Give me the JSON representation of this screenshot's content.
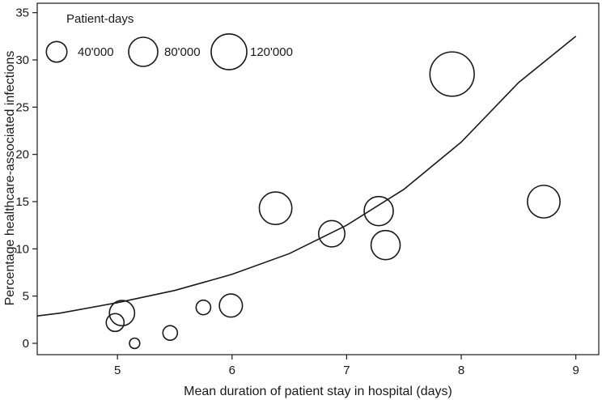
{
  "chart_data": {
    "type": "scatter",
    "subtype": "bubble",
    "xlabel": "Mean duration of patient stay in hospital (days)",
    "ylabel": "Percentage healthcare-associated infections",
    "xlim": [
      4.3,
      9.2
    ],
    "ylim": [
      -1.2,
      36
    ],
    "xticks": [
      5,
      6,
      7,
      8,
      9
    ],
    "yticks": [
      0,
      5,
      10,
      15,
      20,
      25,
      30,
      35
    ],
    "legend": {
      "title": "Patient-days",
      "position": "top-left",
      "entries": [
        {
          "label": "40'000",
          "size": 40000
        },
        {
          "label": "80'000",
          "size": 80000
        },
        {
          "label": "120'000",
          "size": 120000
        }
      ]
    },
    "points": [
      {
        "x": 4.98,
        "y": 2.2,
        "size": 30000
      },
      {
        "x": 5.04,
        "y": 3.2,
        "size": 60000
      },
      {
        "x": 5.15,
        "y": 0.0,
        "size": 10000
      },
      {
        "x": 5.46,
        "y": 1.1,
        "size": 20000
      },
      {
        "x": 5.75,
        "y": 3.8,
        "size": 20000
      },
      {
        "x": 5.99,
        "y": 4.0,
        "size": 50000
      },
      {
        "x": 6.38,
        "y": 14.3,
        "size": 100000
      },
      {
        "x": 6.87,
        "y": 11.6,
        "size": 65000
      },
      {
        "x": 7.28,
        "y": 14.0,
        "size": 80000
      },
      {
        "x": 7.34,
        "y": 10.4,
        "size": 80000
      },
      {
        "x": 7.92,
        "y": 28.5,
        "size": 185000
      },
      {
        "x": 8.72,
        "y": 15.0,
        "size": 100000
      }
    ],
    "fit_curve": {
      "kind": "exponential",
      "x": [
        4.3,
        4.5,
        5.0,
        5.5,
        6.0,
        6.5,
        7.0,
        7.5,
        8.0,
        8.5,
        9.0
      ],
      "y": [
        2.9,
        3.2,
        4.3,
        5.6,
        7.3,
        9.5,
        12.5,
        16.3,
        21.3,
        27.6,
        32.5
      ]
    }
  }
}
